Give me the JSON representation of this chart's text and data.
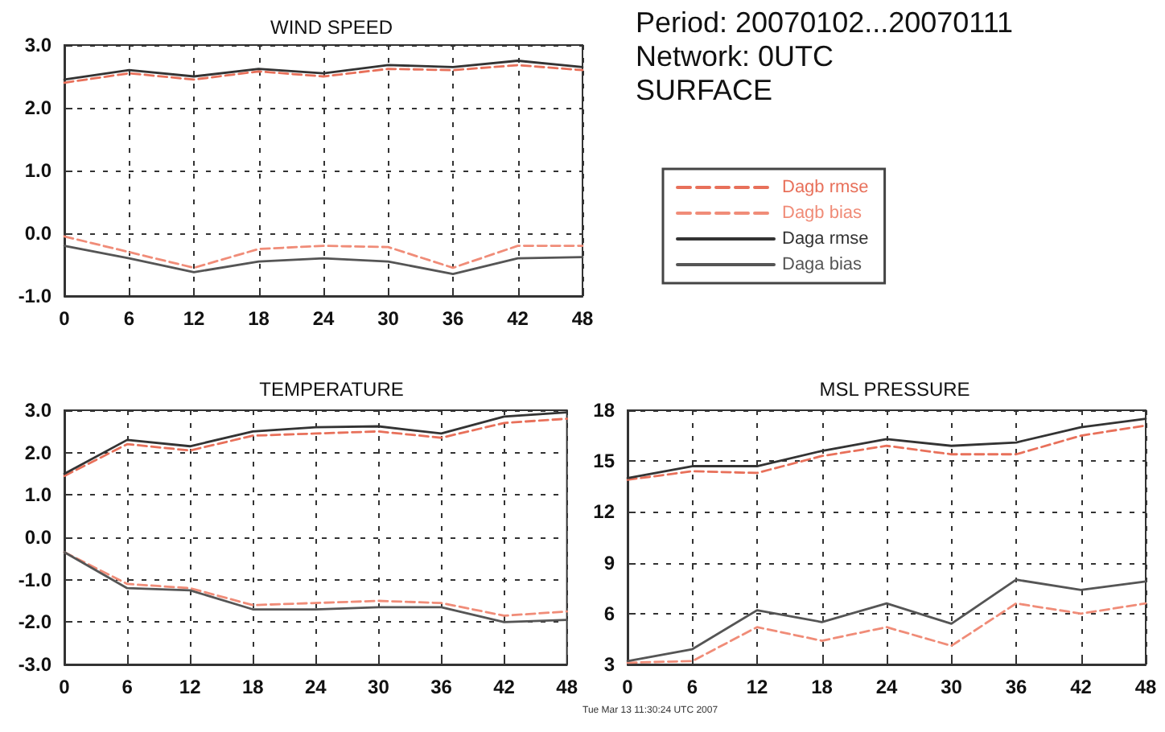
{
  "chart_data": [
    {
      "type": "line",
      "title": "WIND SPEED",
      "x": [
        0,
        6,
        12,
        18,
        24,
        30,
        36,
        42,
        48
      ],
      "xlim": [
        0,
        48
      ],
      "xticks": [
        0,
        6,
        12,
        18,
        24,
        30,
        36,
        42,
        48
      ],
      "ylim": [
        -1,
        3
      ],
      "yticks": [
        {
          "value": -1,
          "label": "-1.0"
        },
        {
          "value": 0,
          "label": "0.0"
        },
        {
          "value": 1,
          "label": "1.0"
        },
        {
          "value": 2,
          "label": "2.0"
        },
        {
          "value": 3,
          "label": "3.0"
        }
      ],
      "grid": true,
      "legend": "right",
      "marker": "none",
      "series": [
        {
          "name": "Dagb rmse",
          "color": "#e8705a",
          "line_style": "dashed",
          "values": [
            2.4,
            2.55,
            2.45,
            2.58,
            2.5,
            2.62,
            2.6,
            2.68,
            2.6
          ]
        },
        {
          "name": "Dagb bias",
          "color": "#f08c78",
          "line_style": "dashed",
          "values": [
            -0.05,
            -0.3,
            -0.55,
            -0.25,
            -0.2,
            -0.22,
            -0.55,
            -0.2,
            -0.2
          ]
        },
        {
          "name": "Daga rmse",
          "color": "#333333",
          "line_style": "solid",
          "values": [
            2.45,
            2.6,
            2.5,
            2.62,
            2.55,
            2.68,
            2.65,
            2.75,
            2.65
          ]
        },
        {
          "name": "Daga bias",
          "color": "#555555",
          "line_style": "solid",
          "values": [
            -0.2,
            -0.4,
            -0.62,
            -0.45,
            -0.4,
            -0.45,
            -0.65,
            -0.4,
            -0.38
          ]
        }
      ]
    },
    {
      "type": "other",
      "annotations": [
        "Period: 20070102...20070111",
        "Network: 0UTC",
        "SURFACE"
      ]
    },
    {
      "type": "line",
      "title": "TEMPERATURE",
      "x": [
        0,
        6,
        12,
        18,
        24,
        30,
        36,
        42,
        48
      ],
      "xlim": [
        0,
        48
      ],
      "xticks": [
        0,
        6,
        12,
        18,
        24,
        30,
        36,
        42,
        48
      ],
      "ylim": [
        -3,
        3
      ],
      "yticks": [
        {
          "value": -3,
          "label": "-3.0"
        },
        {
          "value": -2,
          "label": "-2.0"
        },
        {
          "value": -1,
          "label": "-1.0"
        },
        {
          "value": 0,
          "label": "0.0"
        },
        {
          "value": 1,
          "label": "1.0"
        },
        {
          "value": 2,
          "label": "2.0"
        },
        {
          "value": 3,
          "label": "3.0"
        }
      ],
      "grid": true,
      "marker": "none",
      "series": [
        {
          "color": "#e8705a",
          "line_style": "dashed",
          "values": [
            1.45,
            2.2,
            2.05,
            2.4,
            2.45,
            2.5,
            2.35,
            2.7,
            2.8
          ]
        },
        {
          "color": "#f08c78",
          "line_style": "dashed",
          "values": [
            -0.35,
            -1.1,
            -1.2,
            -1.6,
            -1.55,
            -1.5,
            -1.55,
            -1.85,
            -1.75
          ]
        },
        {
          "color": "#333333",
          "line_style": "solid",
          "values": [
            1.5,
            2.3,
            2.15,
            2.5,
            2.6,
            2.62,
            2.45,
            2.85,
            2.95
          ]
        },
        {
          "color": "#555555",
          "line_style": "solid",
          "values": [
            -0.35,
            -1.2,
            -1.25,
            -1.7,
            -1.7,
            -1.65,
            -1.65,
            -2.0,
            -1.95
          ]
        }
      ]
    },
    {
      "type": "line",
      "title": "MSL PRESSURE",
      "x": [
        0,
        6,
        12,
        18,
        24,
        30,
        36,
        42,
        48
      ],
      "xlim": [
        0,
        48
      ],
      "xticks": [
        0,
        6,
        12,
        18,
        24,
        30,
        36,
        42,
        48
      ],
      "ylim": [
        3,
        18
      ],
      "yticks": [
        3,
        6,
        9,
        12,
        15,
        18
      ],
      "grid": true,
      "marker": "none",
      "annotations": [
        "Tue Mar 13 11:30:24 UTC 2007"
      ],
      "series": [
        {
          "color": "#e8705a",
          "line_style": "dashed",
          "values": [
            13.9,
            14.4,
            14.3,
            15.3,
            15.9,
            15.4,
            15.4,
            16.5,
            17.1
          ]
        },
        {
          "color": "#f08c78",
          "line_style": "dashed",
          "values": [
            3.1,
            3.2,
            5.2,
            4.4,
            5.2,
            4.1,
            6.6,
            6.0,
            6.6
          ]
        },
        {
          "color": "#333333",
          "line_style": "solid",
          "values": [
            14,
            14.7,
            14.7,
            15.6,
            16.3,
            15.9,
            16.1,
            17.0,
            17.5
          ]
        },
        {
          "color": "#555555",
          "line_style": "solid",
          "values": [
            3.2,
            3.9,
            6.2,
            5.5,
            6.6,
            5.4,
            8.0,
            7.4,
            7.9
          ]
        }
      ]
    }
  ]
}
